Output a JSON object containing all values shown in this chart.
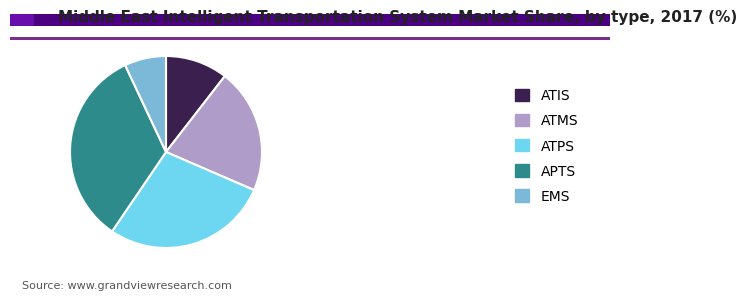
{
  "title": "Middle East Intelligent Transportation System Market Share, by type, 2017 (%)",
  "labels": [
    "ATIS",
    "ATMS",
    "ATPS",
    "APTS",
    "EMS"
  ],
  "values": [
    10.5,
    21.0,
    28.0,
    33.5,
    7.0
  ],
  "colors": [
    "#3b1f4e",
    "#b09cc8",
    "#6dd6f0",
    "#2e8b8b",
    "#7cb9d8"
  ],
  "startangle": 90,
  "source_text": "Source: www.grandviewresearch.com",
  "title_fontsize": 11,
  "legend_fontsize": 10,
  "source_fontsize": 8,
  "header_bar_colors": [
    "#6a0dad",
    "#3b1a6b",
    "#1a1a8c"
  ],
  "background_color": "#ffffff"
}
